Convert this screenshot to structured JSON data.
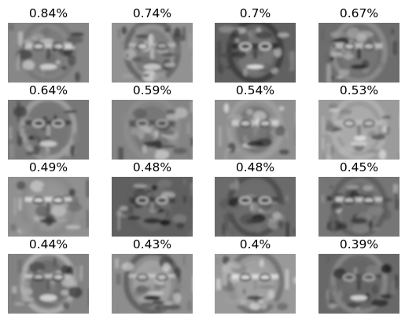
{
  "figure": {
    "panels": [
      {
        "title": "0.84%",
        "image": "eigenface-1"
      },
      {
        "title": "0.74%",
        "image": "eigenface-2"
      },
      {
        "title": "0.7%",
        "image": "eigenface-3"
      },
      {
        "title": "0.67%",
        "image": "eigenface-4"
      },
      {
        "title": "0.64%",
        "image": "eigenface-5"
      },
      {
        "title": "0.59%",
        "image": "eigenface-6"
      },
      {
        "title": "0.54%",
        "image": "eigenface-7"
      },
      {
        "title": "0.53%",
        "image": "eigenface-8"
      },
      {
        "title": "0.49%",
        "image": "eigenface-9"
      },
      {
        "title": "0.48%",
        "image": "eigenface-10"
      },
      {
        "title": "0.48%",
        "image": "eigenface-11"
      },
      {
        "title": "0.45%",
        "image": "eigenface-12"
      },
      {
        "title": "0.44%",
        "image": "eigenface-13"
      },
      {
        "title": "0.43%",
        "image": "eigenface-14"
      },
      {
        "title": "0.4%",
        "image": "eigenface-15"
      },
      {
        "title": "0.39%",
        "image": "eigenface-16"
      }
    ]
  }
}
